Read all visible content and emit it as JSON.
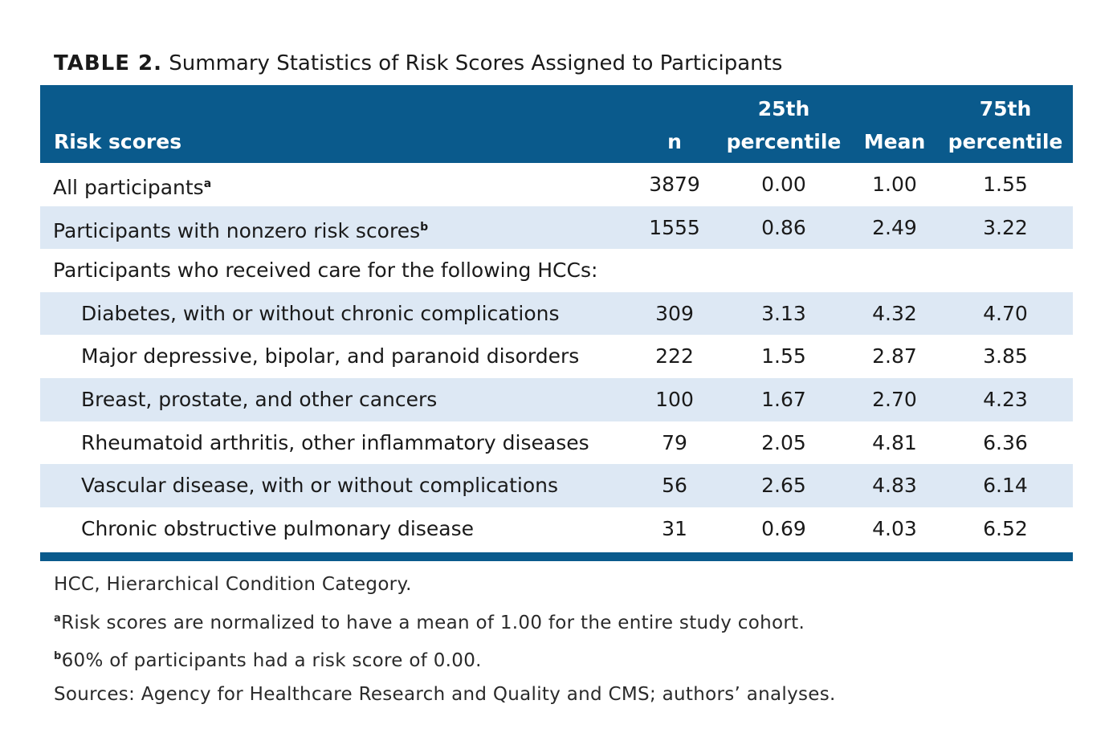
{
  "caption": {
    "label": "TABLE 2.",
    "title": "Summary Statistics of Risk Scores Assigned to Participants"
  },
  "table": {
    "headers": {
      "label": "Risk scores",
      "n": "n",
      "p25_line1": "25th",
      "p25_line2": "percentile",
      "mean": "Mean",
      "p75_line1": "75th",
      "p75_line2": "percentile"
    },
    "rows": [
      {
        "label": "All participants",
        "footnote": "a",
        "n": "3879",
        "p25": "0.00",
        "mean": "1.00",
        "p75": "1.55"
      },
      {
        "label": "Participants with nonzero risk scores",
        "footnote": "b",
        "n": "1555",
        "p25": "0.86",
        "mean": "2.49",
        "p75": "3.22"
      },
      {
        "label": "Participants who received care for the following HCCs:",
        "footnote": "",
        "n": "",
        "p25": "",
        "mean": "",
        "p75": ""
      },
      {
        "label": "Diabetes, with or without chronic complications",
        "footnote": "",
        "n": "309",
        "p25": "3.13",
        "mean": "4.32",
        "p75": "4.70"
      },
      {
        "label": "Major depressive, bipolar, and paranoid disorders",
        "footnote": "",
        "n": "222",
        "p25": "1.55",
        "mean": "2.87",
        "p75": "3.85"
      },
      {
        "label": "Breast, prostate, and other cancers",
        "footnote": "",
        "n": "100",
        "p25": "1.67",
        "mean": "2.70",
        "p75": "4.23"
      },
      {
        "label": "Rheumatoid arthritis, other inflammatory diseases",
        "footnote": "",
        "n": "79",
        "p25": "2.05",
        "mean": "4.81",
        "p75": "6.36"
      },
      {
        "label": "Vascular disease, with or without complications",
        "footnote": "",
        "n": "56",
        "p25": "2.65",
        "mean": "4.83",
        "p75": "6.14"
      },
      {
        "label": "Chronic obstructive pulmonary disease",
        "footnote": "",
        "n": "31",
        "p25": "0.69",
        "mean": "4.03",
        "p75": "6.52"
      }
    ]
  },
  "notes": {
    "abbrev": "HCC, Hierarchical Condition Category.",
    "fn_a_mark": "a",
    "fn_a": "Risk scores are normalized to have a mean of 1.00 for the entire study cohort.",
    "fn_b_mark": "b",
    "fn_b": "60% of participants had a risk score of 0.00.",
    "sources": "Sources: Agency for Healthcare Research and Quality and CMS; authors’ analyses."
  },
  "colors": {
    "header_bg": "#0a5a8c",
    "row_shade": "#dde8f4"
  }
}
